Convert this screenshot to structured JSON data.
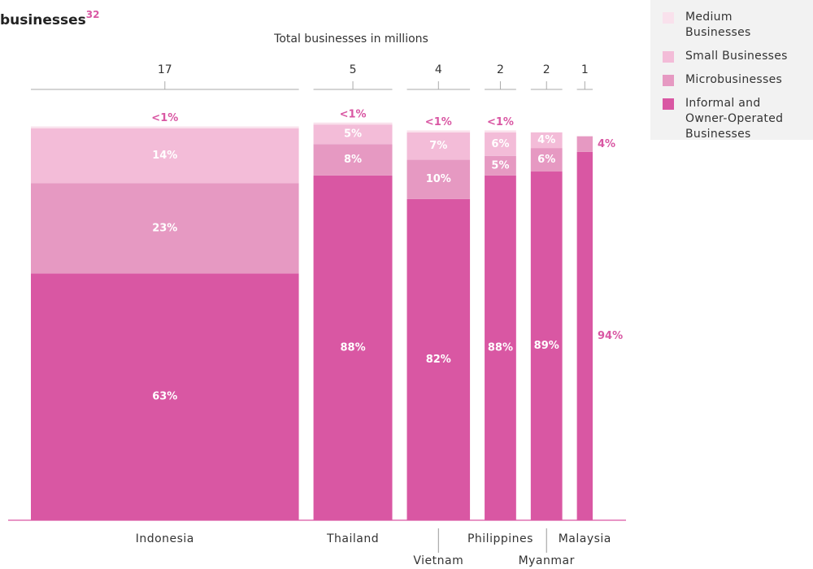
{
  "chart_data": {
    "type": "mekko",
    "title": "businesses",
    "title_superscript": "32",
    "subtitle": "Total businesses in millions",
    "categories": [
      "Indonesia",
      "Thailand",
      "Vietnam",
      "Philippines",
      "Myanmar",
      "Malaysia"
    ],
    "totals": [
      17,
      5,
      4,
      2,
      2,
      1
    ],
    "ylim": [
      0,
      100
    ],
    "series": [
      {
        "name": "Informal and Owner-Operated Businesses",
        "color": "#d957a3",
        "values": [
          63,
          88,
          82,
          88,
          89,
          94
        ],
        "value_labels": [
          "63%",
          "88%",
          "82%",
          "88%",
          "89%",
          "94%"
        ]
      },
      {
        "name": "Microbusinesses",
        "color": "#e699c2",
        "values": [
          23,
          8,
          10,
          5,
          6,
          4
        ],
        "value_labels": [
          "23%",
          "8%",
          "10%",
          "5%",
          "6%",
          "4%"
        ]
      },
      {
        "name": "Small Businesses",
        "color": "#f3bcd8",
        "values": [
          14,
          5,
          7,
          6,
          4,
          null
        ],
        "value_labels": [
          "14%",
          "5%",
          "7%",
          "6%",
          "4%",
          null
        ]
      },
      {
        "name": "Medium Businesses",
        "color": "#f9e1ec",
        "values": [
          0.5,
          0.5,
          0.5,
          0.5,
          null,
          null
        ],
        "value_labels": [
          "<1%",
          "<1%",
          "<1%",
          "<1%",
          null,
          null
        ]
      }
    ]
  }
}
